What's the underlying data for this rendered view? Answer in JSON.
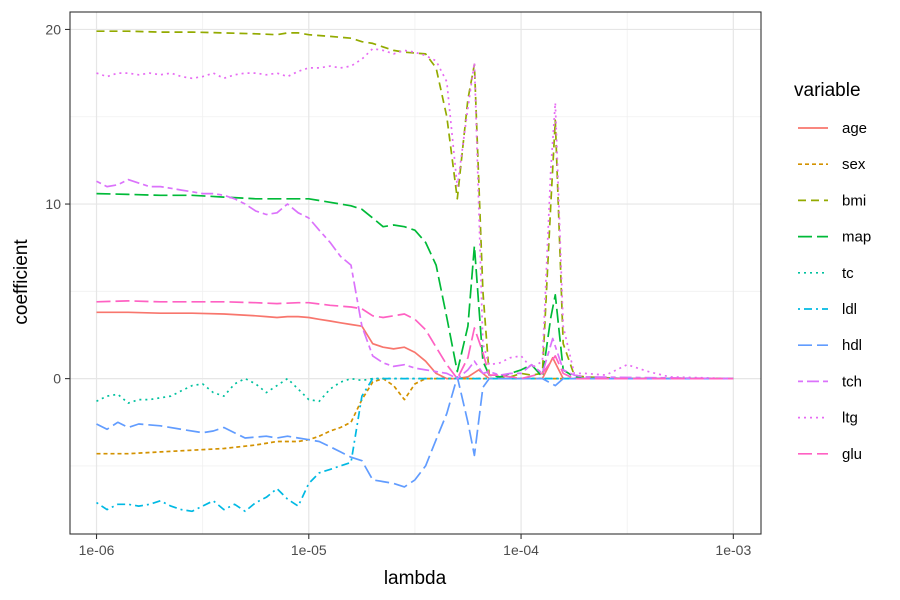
{
  "chart_data": {
    "type": "line",
    "xlabel": "lambda",
    "ylabel": "coefficient",
    "x_scale": "log10",
    "xlim": [
      7.5e-07,
      0.00135
    ],
    "ylim": [
      -8.9,
      21
    ],
    "x_ticks": [
      1e-06,
      1e-05,
      0.0001,
      0.001
    ],
    "x_tick_labels": [
      "1e-06",
      "1e-05",
      "1e-04",
      "1e-03"
    ],
    "y_ticks": [
      0,
      10,
      20
    ],
    "y_tick_labels": [
      "0",
      "10",
      "20"
    ],
    "grid": true,
    "legend_title": "variable",
    "legend_position": "right",
    "series": [
      {
        "name": "age",
        "color": "#F8766D",
        "dash": "solid",
        "x": [
          1e-06,
          1.41e-06,
          2e-06,
          2.82e-06,
          3.98e-06,
          5.62e-06,
          6.31e-06,
          7.08e-06,
          7.94e-06,
          8.91e-06,
          1e-05,
          1.12e-05,
          1.26e-05,
          1.41e-05,
          1.58e-05,
          1.78e-05,
          2e-05,
          2.24e-05,
          2.51e-05,
          2.82e-05,
          3.16e-05,
          3.55e-05,
          3.98e-05,
          4.47e-05,
          5.01e-05,
          5.62e-05,
          6.31e-05,
          7.08e-05,
          7.94e-05,
          8.91e-05,
          0.0001,
          0.000112,
          0.000126,
          0.000141,
          0.000158,
          0.000178,
          0.0002,
          0.000316,
          0.001
        ],
        "y": [
          3.8,
          3.8,
          3.75,
          3.75,
          3.7,
          3.6,
          3.55,
          3.5,
          3.55,
          3.55,
          3.5,
          3.4,
          3.3,
          3.2,
          3.1,
          3.0,
          2.0,
          1.8,
          1.7,
          1.8,
          1.5,
          1.0,
          0.3,
          0.0,
          0.0,
          0.1,
          0.5,
          0.0,
          0.0,
          0.0,
          0.0,
          0.0,
          0.0,
          1.2,
          0.0,
          0.0,
          0.0,
          0.0,
          0.0
        ]
      },
      {
        "name": "sex",
        "color": "#D39200",
        "dash": "short",
        "x": [
          1e-06,
          1.41e-06,
          2e-06,
          2.82e-06,
          3.98e-06,
          5.62e-06,
          7.08e-06,
          8.91e-06,
          1e-05,
          1.12e-05,
          1.26e-05,
          1.41e-05,
          1.58e-05,
          1.78e-05,
          2e-05,
          2.24e-05,
          2.51e-05,
          2.82e-05,
          3.16e-05,
          3.55e-05,
          3.98e-05,
          5.01e-05,
          0.0001,
          0.001
        ],
        "y": [
          -4.3,
          -4.3,
          -4.2,
          -4.1,
          -4.0,
          -3.8,
          -3.6,
          -3.6,
          -3.5,
          -3.3,
          -3.0,
          -2.8,
          -2.5,
          -1.2,
          -0.2,
          0.0,
          -0.4,
          -1.2,
          -0.3,
          0.0,
          0.0,
          0.0,
          0.0,
          0.0
        ]
      },
      {
        "name": "bmi",
        "color": "#93AA00",
        "dash": "dashed",
        "x": [
          1e-06,
          1.41e-06,
          2e-06,
          2.82e-06,
          3.98e-06,
          5.62e-06,
          7.08e-06,
          7.94e-06,
          8.91e-06,
          1e-05,
          1.26e-05,
          1.58e-05,
          1.78e-05,
          2e-05,
          2.24e-05,
          2.51e-05,
          2.82e-05,
          3.16e-05,
          3.55e-05,
          3.98e-05,
          4.47e-05,
          5.01e-05,
          5.62e-05,
          6.03e-05,
          6.61e-05,
          7.08e-05,
          7.94e-05,
          8.91e-05,
          0.0001,
          0.000112,
          0.000126,
          0.000138,
          0.000145,
          0.000158,
          0.000178,
          0.0002,
          0.000316,
          0.001
        ],
        "y": [
          19.9,
          19.9,
          19.85,
          19.85,
          19.8,
          19.75,
          19.7,
          19.8,
          19.8,
          19.7,
          19.6,
          19.5,
          19.3,
          19.2,
          19.0,
          18.8,
          18.7,
          18.65,
          18.6,
          17.8,
          15.0,
          10.3,
          16.0,
          18.0,
          5.0,
          0.2,
          0.1,
          0.1,
          0.3,
          0.2,
          0.3,
          10.0,
          14.8,
          2.0,
          0.2,
          0.1,
          0.0,
          0.0
        ]
      },
      {
        "name": "map",
        "color": "#00BA38",
        "dash": "longdash",
        "x": [
          1e-06,
          1.41e-06,
          2e-06,
          2.82e-06,
          3.98e-06,
          5.62e-06,
          7.08e-06,
          8.91e-06,
          1e-05,
          1.26e-05,
          1.58e-05,
          1.78e-05,
          2e-05,
          2.24e-05,
          2.51e-05,
          2.82e-05,
          3.16e-05,
          3.55e-05,
          3.98e-05,
          4.47e-05,
          5.01e-05,
          5.62e-05,
          6.03e-05,
          6.61e-05,
          7.08e-05,
          7.94e-05,
          8.91e-05,
          0.0001,
          0.000112,
          0.000126,
          0.000138,
          0.000145,
          0.000158,
          0.000178,
          0.0002,
          0.001
        ],
        "y": [
          10.6,
          10.55,
          10.5,
          10.5,
          10.4,
          10.3,
          10.3,
          10.3,
          10.3,
          10.1,
          9.9,
          9.7,
          9.2,
          8.7,
          8.8,
          8.7,
          8.5,
          7.8,
          6.5,
          3.5,
          0.4,
          3.0,
          7.6,
          1.0,
          0.2,
          0.1,
          0.3,
          0.5,
          0.8,
          0.1,
          3.5,
          4.8,
          0.5,
          0.1,
          0.0,
          0.0
        ]
      },
      {
        "name": "tc",
        "color": "#00C19F",
        "dash": "dotted",
        "x": [
          1e-06,
          1.12e-06,
          1.26e-06,
          1.41e-06,
          1.58e-06,
          1.78e-06,
          2e-06,
          2.24e-06,
          2.51e-06,
          2.82e-06,
          3.16e-06,
          3.55e-06,
          3.98e-06,
          4.47e-06,
          5.01e-06,
          5.62e-06,
          6.31e-06,
          7.08e-06,
          7.94e-06,
          8.91e-06,
          1e-05,
          1.12e-05,
          1.26e-05,
          1.41e-05,
          1.58e-05,
          1.78e-05,
          2e-05,
          0.001
        ],
        "y": [
          -1.3,
          -1.0,
          -0.9,
          -1.4,
          -1.2,
          -1.2,
          -1.1,
          -1.0,
          -0.7,
          -0.4,
          -0.3,
          -0.8,
          -1.0,
          -0.3,
          0.0,
          -0.3,
          -0.8,
          -0.4,
          0.0,
          -0.6,
          -1.2,
          -1.3,
          -0.6,
          -0.2,
          0.0,
          -0.1,
          0.0,
          0.0
        ]
      },
      {
        "name": "ldl",
        "color": "#00B9E3",
        "dash": "dotdash",
        "x": [
          1e-06,
          1.12e-06,
          1.26e-06,
          1.41e-06,
          1.58e-06,
          1.78e-06,
          2e-06,
          2.24e-06,
          2.51e-06,
          2.82e-06,
          3.16e-06,
          3.55e-06,
          3.98e-06,
          4.47e-06,
          5.01e-06,
          5.62e-06,
          6.31e-06,
          7.08e-06,
          7.94e-06,
          8.91e-06,
          1e-05,
          1.12e-05,
          1.26e-05,
          1.41e-05,
          1.58e-05,
          1.78e-05,
          2e-05,
          2.24e-05,
          0.001
        ],
        "y": [
          -7.1,
          -7.5,
          -7.2,
          -7.2,
          -7.3,
          -7.2,
          -7.0,
          -7.3,
          -7.5,
          -7.6,
          -7.3,
          -7.0,
          -7.5,
          -7.2,
          -7.6,
          -7.1,
          -6.8,
          -6.3,
          -6.9,
          -7.3,
          -6.0,
          -5.4,
          -5.2,
          -5.0,
          -4.8,
          -1.0,
          0.0,
          0.0,
          0.0
        ]
      },
      {
        "name": "hdl",
        "color": "#619CFF",
        "dash": "longdash",
        "x": [
          1e-06,
          1.12e-06,
          1.26e-06,
          1.41e-06,
          1.58e-06,
          2e-06,
          2.51e-06,
          3.16e-06,
          3.55e-06,
          3.98e-06,
          5.01e-06,
          6.31e-06,
          7.08e-06,
          7.94e-06,
          8.91e-06,
          1e-05,
          1.12e-05,
          1.26e-05,
          1.41e-05,
          1.58e-05,
          1.78e-05,
          2e-05,
          2.24e-05,
          2.51e-05,
          2.82e-05,
          3.16e-05,
          3.55e-05,
          3.98e-05,
          4.47e-05,
          5.01e-05,
          5.62e-05,
          6.03e-05,
          6.61e-05,
          7.08e-05,
          7.94e-05,
          0.0001,
          0.000126,
          0.000145,
          0.000158,
          0.001
        ],
        "y": [
          -2.6,
          -2.9,
          -2.5,
          -2.8,
          -2.6,
          -2.7,
          -2.9,
          -3.1,
          -3.0,
          -2.8,
          -3.4,
          -3.3,
          -3.4,
          -3.3,
          -3.4,
          -3.5,
          -3.6,
          -3.9,
          -4.2,
          -4.5,
          -4.7,
          -5.8,
          -5.9,
          -6.0,
          -6.2,
          -5.8,
          -5.0,
          -3.5,
          -2.0,
          0.1,
          -2.5,
          -4.4,
          -0.5,
          0.0,
          0.0,
          0.0,
          0.0,
          -0.4,
          0.0,
          0.0
        ]
      },
      {
        "name": "tch",
        "color": "#DB72FB",
        "dash": "twodash",
        "x": [
          1e-06,
          1.12e-06,
          1.26e-06,
          1.41e-06,
          1.58e-06,
          1.78e-06,
          2e-06,
          2.24e-06,
          2.51e-06,
          2.82e-06,
          3.16e-06,
          3.55e-06,
          3.98e-06,
          4.47e-06,
          5.01e-06,
          5.62e-06,
          6.31e-06,
          7.08e-06,
          7.94e-06,
          8.91e-06,
          1e-05,
          1.12e-05,
          1.26e-05,
          1.41e-05,
          1.58e-05,
          1.78e-05,
          2e-05,
          2.24e-05,
          2.51e-05,
          2.82e-05,
          3.16e-05,
          3.55e-05,
          3.98e-05,
          4.47e-05,
          5.01e-05,
          5.62e-05,
          6.03e-05,
          6.61e-05,
          7.08e-05,
          7.94e-05,
          8.91e-05,
          0.0001,
          0.000112,
          0.000126,
          0.000141,
          0.000158,
          0.000178,
          0.0002,
          0.001
        ],
        "y": [
          11.3,
          11.0,
          11.1,
          11.4,
          11.2,
          11.0,
          11.0,
          10.9,
          10.8,
          10.7,
          10.6,
          10.6,
          10.5,
          10.3,
          10.0,
          9.6,
          9.4,
          9.5,
          10.0,
          9.5,
          9.2,
          8.5,
          7.8,
          7.0,
          6.5,
          3.0,
          1.3,
          0.9,
          0.7,
          0.8,
          0.6,
          0.5,
          0.4,
          0.3,
          0.0,
          0.5,
          1.0,
          0.3,
          0.4,
          0.2,
          0.3,
          0.3,
          0.8,
          0.3,
          2.3,
          0.5,
          0.2,
          0.1,
          0.0
        ]
      },
      {
        "name": "ltg",
        "color": "#E76BF3",
        "dash": "dotted",
        "x": [
          1e-06,
          1.12e-06,
          1.26e-06,
          1.41e-06,
          1.58e-06,
          1.78e-06,
          2e-06,
          2.24e-06,
          2.51e-06,
          2.82e-06,
          3.16e-06,
          3.55e-06,
          3.98e-06,
          4.47e-06,
          5.01e-06,
          5.62e-06,
          6.31e-06,
          7.08e-06,
          7.94e-06,
          8.91e-06,
          1e-05,
          1.12e-05,
          1.26e-05,
          1.41e-05,
          1.58e-05,
          1.78e-05,
          2e-05,
          2.24e-05,
          2.51e-05,
          2.82e-05,
          3.16e-05,
          3.55e-05,
          3.98e-05,
          4.47e-05,
          5.01e-05,
          5.62e-05,
          6.03e-05,
          6.61e-05,
          7.08e-05,
          7.94e-05,
          8.91e-05,
          0.0001,
          0.000112,
          0.000126,
          0.000138,
          0.000145,
          0.000158,
          0.000178,
          0.0002,
          0.000251,
          0.000316,
          0.000398,
          0.000501,
          0.001
        ],
        "y": [
          17.5,
          17.3,
          17.5,
          17.5,
          17.4,
          17.5,
          17.4,
          17.5,
          17.3,
          17.2,
          17.3,
          17.5,
          17.2,
          17.4,
          17.5,
          17.5,
          17.4,
          17.5,
          17.3,
          17.6,
          17.8,
          17.8,
          17.9,
          17.8,
          17.9,
          18.3,
          18.9,
          18.8,
          18.6,
          18.8,
          18.7,
          18.5,
          18.2,
          17.0,
          11.0,
          15.5,
          18.1,
          2.0,
          0.8,
          0.9,
          1.2,
          1.3,
          0.6,
          1.0,
          12.0,
          15.8,
          3.0,
          0.3,
          0.3,
          0.2,
          0.8,
          0.4,
          0.1,
          0.0
        ]
      },
      {
        "name": "glu",
        "color": "#FF61C3",
        "dash": "longdash",
        "x": [
          1e-06,
          1.41e-06,
          2e-06,
          2.82e-06,
          3.98e-06,
          5.62e-06,
          7.08e-06,
          8.91e-06,
          1e-05,
          1.26e-05,
          1.58e-05,
          1.78e-05,
          2e-05,
          2.24e-05,
          2.51e-05,
          2.82e-05,
          3.16e-05,
          3.55e-05,
          3.98e-05,
          4.47e-05,
          5.01e-05,
          5.62e-05,
          6.03e-05,
          6.61e-05,
          7.08e-05,
          7.94e-05,
          0.0001,
          0.000126,
          0.000145,
          0.000158,
          0.000178,
          0.001
        ],
        "y": [
          4.4,
          4.45,
          4.4,
          4.4,
          4.4,
          4.35,
          4.3,
          4.35,
          4.35,
          4.2,
          4.1,
          4.0,
          3.6,
          3.5,
          3.6,
          3.7,
          3.4,
          2.8,
          1.8,
          0.8,
          0.0,
          1.2,
          2.9,
          1.5,
          0.2,
          0.2,
          0.0,
          0.3,
          1.3,
          0.3,
          0.0,
          0.0
        ]
      }
    ]
  }
}
